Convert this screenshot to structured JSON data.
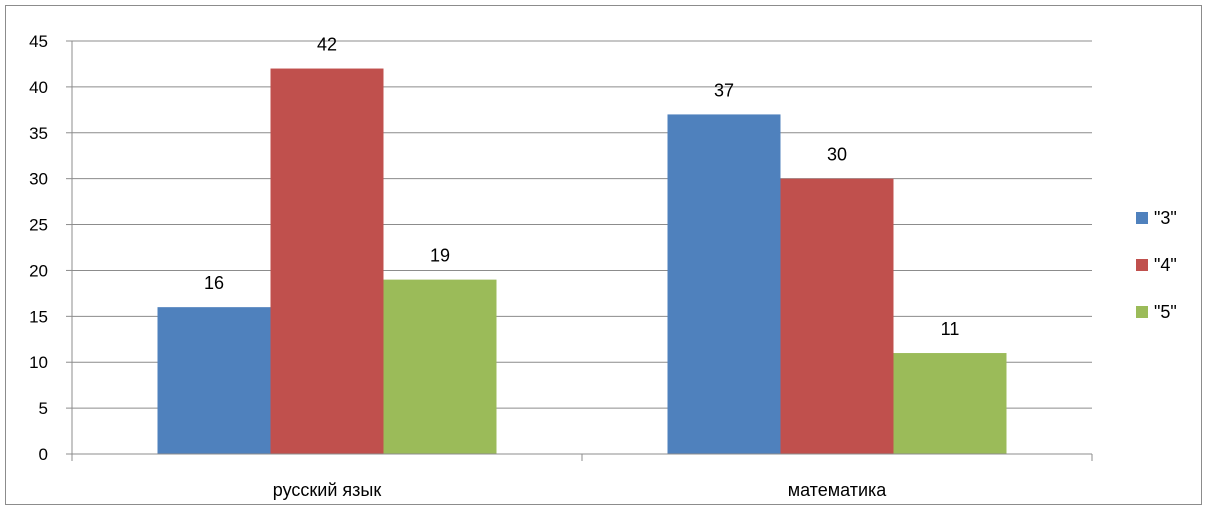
{
  "chart_data": {
    "type": "bar",
    "categories": [
      "русский язык",
      "математика"
    ],
    "series": [
      {
        "name": "\"3\"",
        "values": [
          16,
          37
        ],
        "color": "#4f81bd"
      },
      {
        "name": "\"4\"",
        "values": [
          42,
          30
        ],
        "color": "#c0504d"
      },
      {
        "name": "\"5\"",
        "values": [
          19,
          11
        ],
        "color": "#9bbb59"
      }
    ],
    "ylim": [
      0,
      45
    ],
    "yticks": [
      0,
      5,
      10,
      15,
      20,
      25,
      30,
      35,
      40,
      45
    ],
    "grid": true,
    "legend_position": "right",
    "data_labels": true
  }
}
